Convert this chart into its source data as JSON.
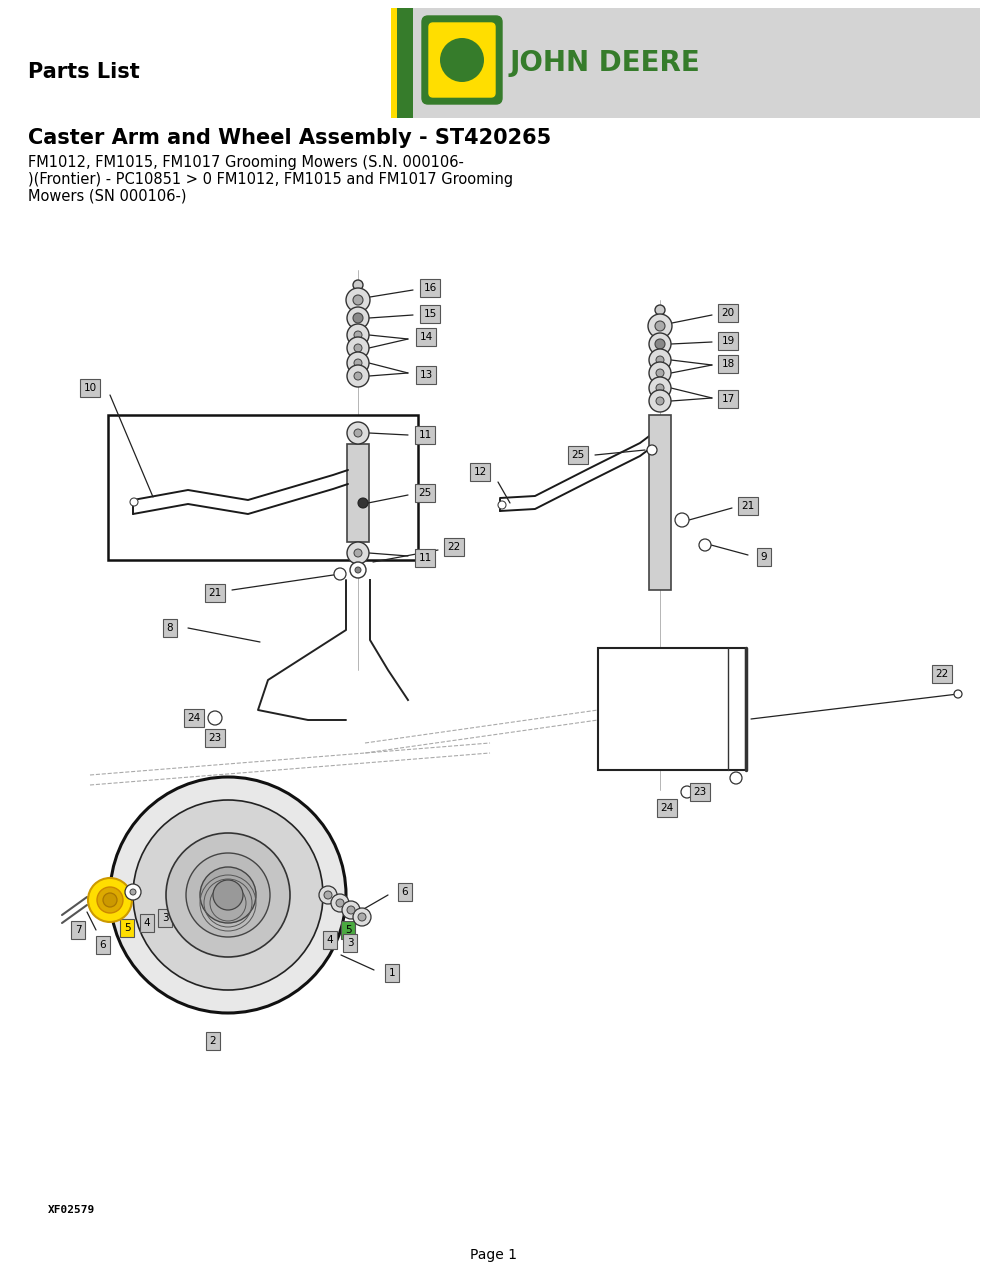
{
  "title": "Caster Arm and Wheel Assembly - ST420265",
  "subtitle_line1": "FM1012, FM1015, FM1017 Grooming Mowers (S.N. 000106-",
  "subtitle_line2": ")(Frontier) - PC10851 > 0 FM1012, FM1015 and FM1017 Grooming",
  "subtitle_line3": "Mowers (SN 000106-)",
  "parts_list_text": "Parts List",
  "page_text": "Page 1",
  "doc_id": "XF02579",
  "bg_color": "#ffffff",
  "header_bg": "#d4d4d4",
  "jd_green": "#367C2B",
  "jd_yellow": "#FFDE00",
  "label_bg": "#c8c8c8",
  "text_color": "#000000",
  "highlight_yellow": "#FFDE00",
  "highlight_green": "#4aaa40",
  "line_color": "#1a1a1a",
  "shaft_color": "#555555",
  "part_circle_fc": "#ffffff",
  "part_circle_ec": "#333333",
  "washer_fc": "#dddddd",
  "washer_ec": "#333333",
  "tire_fc": "#e0e0e0",
  "tire_ec": "#111111"
}
